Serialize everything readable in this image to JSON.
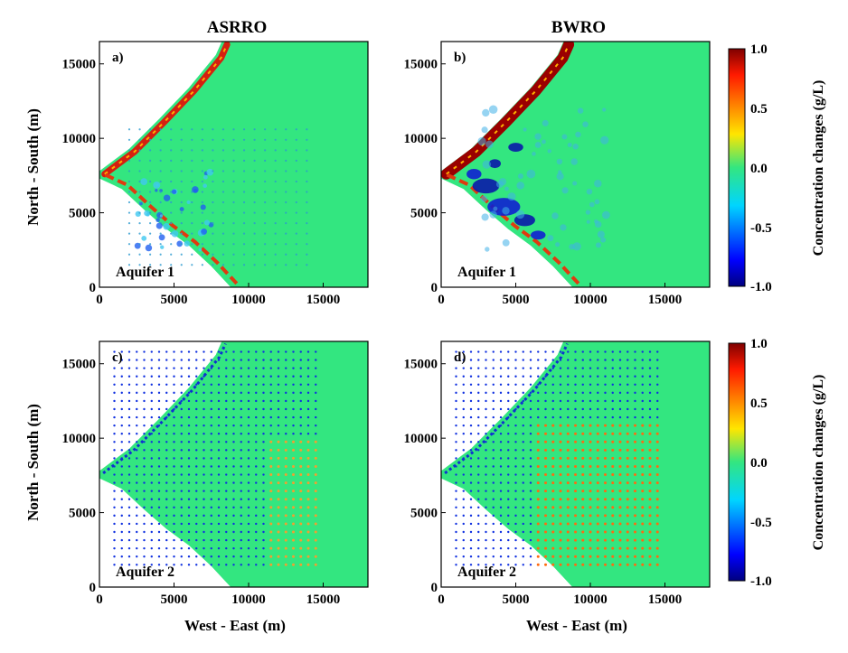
{
  "colors": {
    "background": "#33e680",
    "accent_pos": "#f0a030",
    "accent_neg": "#2040e0",
    "frame": "#000000"
  },
  "column_titles": [
    "ASRRO",
    "BWRO"
  ],
  "xlabel": "West - East (m)",
  "ylabel": "North - South (m)",
  "colorbars": [
    {
      "label": "Concentration changes (g/L)",
      "ticks": [
        "1.0",
        "0.5",
        "0.0",
        "-0.5",
        "-1.0"
      ],
      "range": [
        -1.0,
        1.0
      ]
    },
    {
      "label": "Concentration changes (g/L)",
      "ticks": [
        "1.0",
        "0.5",
        "0.0",
        "-0.5",
        "-1.0"
      ],
      "range": [
        -1.0,
        1.0
      ]
    }
  ],
  "chart_data": [
    {
      "type": "heatmap",
      "panel": "a)",
      "column": "ASRRO",
      "annotation": "Aquifer 1",
      "x_ticks": [
        0,
        5000,
        10000,
        15000
      ],
      "y_ticks": [
        0,
        5000,
        10000,
        15000
      ],
      "xlim": [
        0,
        18000
      ],
      "ylim": [
        0,
        16500
      ],
      "value_range": [
        -1.0,
        1.0
      ],
      "pattern": "coastal red band, mixed blue spots, sparse well grid"
    },
    {
      "type": "heatmap",
      "panel": "b)",
      "column": "BWRO",
      "annotation": "Aquifer 1",
      "x_ticks": [
        0,
        5000,
        10000,
        15000
      ],
      "y_ticks": [
        0,
        5000,
        10000,
        15000
      ],
      "xlim": [
        0,
        18000
      ],
      "ylim": [
        0,
        16500
      ],
      "value_range": [
        -1.0,
        1.0
      ],
      "pattern": "strong coastal red band, large blue decrease region"
    },
    {
      "type": "heatmap",
      "panel": "c)",
      "column": "ASRRO",
      "annotation": "Aquifer 2",
      "x_ticks": [
        0,
        5000,
        10000,
        15000
      ],
      "y_ticks": [
        0,
        5000,
        10000,
        15000
      ],
      "xlim": [
        0,
        18000
      ],
      "ylim": [
        0,
        16500
      ],
      "value_range": [
        -1.0,
        1.0
      ],
      "pattern": "blue well grid, few orange wells in east"
    },
    {
      "type": "heatmap",
      "panel": "d)",
      "column": "BWRO",
      "annotation": "Aquifer 2",
      "x_ticks": [
        0,
        5000,
        10000,
        15000
      ],
      "y_ticks": [
        0,
        5000,
        10000,
        15000
      ],
      "xlim": [
        0,
        18000
      ],
      "ylim": [
        0,
        16500
      ],
      "value_range": [
        -1.0,
        1.0
      ],
      "pattern": "blue well grid west, dense orange well grid east"
    }
  ]
}
